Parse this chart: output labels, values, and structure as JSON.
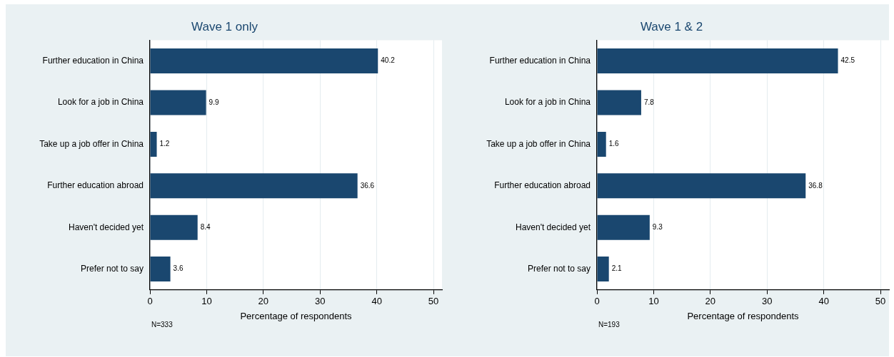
{
  "chart_data": [
    {
      "type": "bar",
      "orientation": "horizontal",
      "title": "Wave 1 only",
      "xlabel": "Percentage of respondents",
      "categories": [
        "Further education in China",
        "Look for a job in China",
        "Take up a job offer in China",
        "Further education abroad",
        "Haven't decided yet",
        "Prefer not to say"
      ],
      "values": [
        40.2,
        9.9,
        1.2,
        36.6,
        8.4,
        3.6
      ],
      "color": "#1a476f",
      "xlim": [
        0,
        51.5
      ],
      "xticks": [
        0,
        10,
        20,
        30,
        40,
        50
      ],
      "grid": "x",
      "data_labels": true,
      "annotations": [
        "N=333"
      ]
    },
    {
      "type": "bar",
      "orientation": "horizontal",
      "title": "Wave 1 & 2",
      "xlabel": "Percentage of respondents",
      "categories": [
        "Further education in China",
        "Look for a job in China",
        "Take up a job offer in China",
        "Further education abroad",
        "Haven't decided yet",
        "Prefer not to say"
      ],
      "values": [
        42.5,
        7.8,
        1.6,
        36.8,
        9.3,
        2.1
      ],
      "color": "#1a476f",
      "xlim": [
        0,
        51.5
      ],
      "xticks": [
        0,
        10,
        20,
        30,
        40,
        50
      ],
      "grid": "x",
      "data_labels": true,
      "annotations": [
        "N=193"
      ]
    }
  ]
}
